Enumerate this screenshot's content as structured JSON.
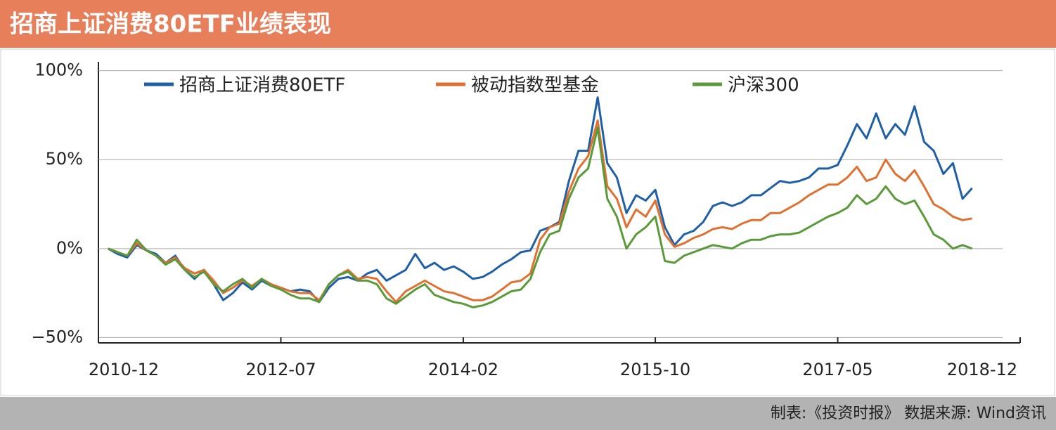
{
  "chart_data": {
    "type": "line",
    "title": "招商上证消费80ETF业绩表现",
    "source": "制表:《投资时报》 数据来源: Wind资讯",
    "x": [
      "2011-01",
      "2011-02",
      "2011-03",
      "2011-04",
      "2011-05",
      "2011-06",
      "2011-07",
      "2011-08",
      "2011-09",
      "2011-10",
      "2011-11",
      "2011-12",
      "2012-01",
      "2012-02",
      "2012-03",
      "2012-04",
      "2012-05",
      "2012-06",
      "2012-07",
      "2012-08",
      "2012-09",
      "2012-10",
      "2012-11",
      "2012-12",
      "2013-01",
      "2013-02",
      "2013-03",
      "2013-04",
      "2013-05",
      "2013-06",
      "2013-07",
      "2013-08",
      "2013-09",
      "2013-10",
      "2013-11",
      "2013-12",
      "2014-01",
      "2014-02",
      "2014-03",
      "2014-04",
      "2014-05",
      "2014-06",
      "2014-07",
      "2014-08",
      "2014-09",
      "2014-10",
      "2014-11",
      "2014-12",
      "2015-01",
      "2015-02",
      "2015-03",
      "2015-04",
      "2015-05",
      "2015-06",
      "2015-07",
      "2015-08",
      "2015-09",
      "2015-10",
      "2015-11",
      "2015-12",
      "2016-01",
      "2016-02",
      "2016-03",
      "2016-04",
      "2016-05",
      "2016-06",
      "2016-07",
      "2016-08",
      "2016-09",
      "2016-10",
      "2016-11",
      "2016-12",
      "2017-01",
      "2017-02",
      "2017-03",
      "2017-04",
      "2017-05",
      "2017-06",
      "2017-07",
      "2017-08",
      "2017-09",
      "2017-10",
      "2017-11",
      "2017-12",
      "2018-01",
      "2018-02",
      "2018-03",
      "2018-04",
      "2018-05",
      "2018-06",
      "2018-07"
    ],
    "series": [
      {
        "name": "招商上证消费80ETF",
        "color": "#1f5fa8",
        "values": [
          0,
          -3,
          -5,
          2,
          -1,
          -3,
          -8,
          -4,
          -12,
          -17,
          -12,
          -20,
          -29,
          -25,
          -19,
          -23,
          -18,
          -21,
          -22,
          -24,
          -23,
          -24,
          -30,
          -22,
          -17,
          -16,
          -18,
          -14,
          -12,
          -18,
          -15,
          -12,
          -3,
          -11,
          -8,
          -12,
          -10,
          -13,
          -17,
          -16,
          -13,
          -9,
          -6,
          -2,
          -1,
          10,
          12,
          15,
          38,
          55,
          55,
          85,
          48,
          40,
          20,
          30,
          27,
          33,
          12,
          2,
          8,
          10,
          15,
          24,
          26,
          24,
          26,
          30,
          30,
          34,
          38,
          37,
          38,
          40,
          45,
          45,
          47,
          58,
          70,
          62,
          76,
          62,
          70,
          64,
          80,
          60,
          55,
          42,
          48,
          28,
          34
        ]
      },
      {
        "name": "被动指数型基金",
        "color": "#e07030",
        "values": [
          0,
          -2,
          -4,
          3,
          -1,
          -4,
          -8,
          -5,
          -11,
          -14,
          -12,
          -18,
          -25,
          -22,
          -18,
          -21,
          -17,
          -20,
          -22,
          -24,
          -25,
          -25,
          -29,
          -20,
          -15,
          -12,
          -17,
          -16,
          -17,
          -24,
          -30,
          -24,
          -21,
          -18,
          -21,
          -24,
          -25,
          -27,
          -29,
          -29,
          -27,
          -23,
          -19,
          -18,
          -14,
          5,
          12,
          14,
          32,
          45,
          52,
          72,
          35,
          28,
          12,
          22,
          18,
          27,
          8,
          1,
          3,
          6,
          8,
          11,
          12,
          11,
          14,
          16,
          16,
          20,
          20,
          23,
          26,
          30,
          33,
          36,
          36,
          40,
          46,
          38,
          40,
          50,
          42,
          38,
          44,
          35,
          25,
          22,
          18,
          16,
          17
        ]
      },
      {
        "name": "沪深300",
        "color": "#5a9a3a",
        "values": [
          0,
          -2,
          -4,
          5,
          -1,
          -4,
          -9,
          -6,
          -12,
          -16,
          -13,
          -20,
          -24,
          -20,
          -17,
          -22,
          -17,
          -21,
          -23,
          -26,
          -28,
          -28,
          -30,
          -20,
          -15,
          -13,
          -18,
          -18,
          -20,
          -28,
          -31,
          -27,
          -23,
          -20,
          -26,
          -28,
          -30,
          -31,
          -33,
          -32,
          -30,
          -27,
          -24,
          -23,
          -17,
          -2,
          8,
          10,
          28,
          40,
          45,
          68,
          28,
          18,
          0,
          8,
          12,
          18,
          -7,
          -8,
          -4,
          -2,
          0,
          2,
          1,
          0,
          3,
          5,
          5,
          7,
          8,
          8,
          9,
          12,
          15,
          18,
          20,
          23,
          30,
          25,
          28,
          35,
          28,
          25,
          27,
          18,
          8,
          5,
          0,
          2,
          0
        ]
      }
    ],
    "xlim": [
      "2010-12",
      "2018-12"
    ],
    "xticks": [
      "2010-12",
      "2012-07",
      "2014-02",
      "2015-10",
      "2017-05",
      "2018-12"
    ],
    "ylim": [
      -53,
      105
    ],
    "yticks": [
      {
        "value": 100,
        "label": "100%"
      },
      {
        "value": 50,
        "label": "50%"
      },
      {
        "value": 0,
        "label": "0%"
      },
      {
        "value": -50,
        "label": "−50%"
      }
    ],
    "grid": true,
    "legend": "top"
  }
}
